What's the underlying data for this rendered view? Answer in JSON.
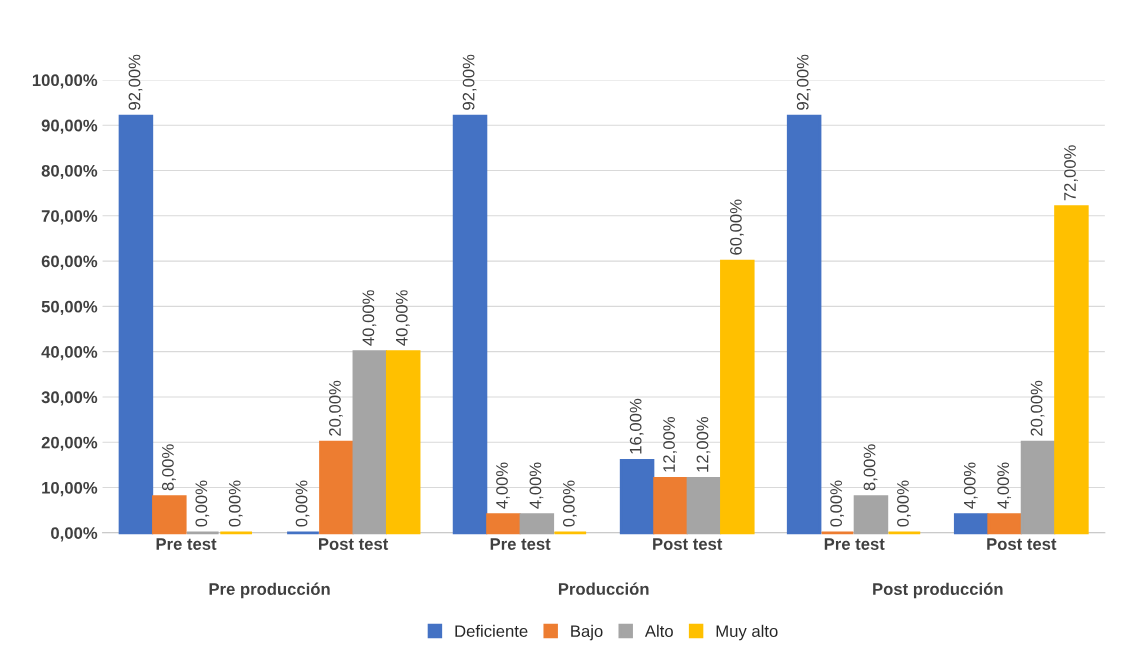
{
  "chart_data": {
    "type": "bar",
    "categories": [
      "Pre test",
      "Post test",
      "Pre test",
      "Post test",
      "Pre test",
      "Post test"
    ],
    "series": [
      {
        "name": "Deficiente",
        "color": "#4472c4",
        "values": [
          92,
          0,
          92,
          16,
          92,
          4
        ],
        "value_labels": [
          "92,00%",
          "0,00%",
          "92,00%",
          "16,00%",
          "92,00%",
          "4,00%"
        ]
      },
      {
        "name": "Bajo",
        "color": "#ed7d31",
        "values": [
          8,
          20,
          4,
          12,
          0,
          4
        ],
        "value_labels": [
          "8,00%",
          "20,00%",
          "4,00%",
          "12,00%",
          "0,00%",
          "4,00%"
        ]
      },
      {
        "name": "Alto",
        "color": "#a5a5a5",
        "values": [
          0,
          40,
          4,
          12,
          8,
          20
        ],
        "value_labels": [
          "0,00%",
          "40,00%",
          "4,00%",
          "12,00%",
          "8,00%",
          "20,00%"
        ]
      },
      {
        "name": "Muy alto",
        "color": "#ffc000",
        "values": [
          0,
          40,
          0,
          60,
          0,
          72
        ],
        "value_labels": [
          "0,00%",
          "40,00%",
          "0,00%",
          "60,00%",
          "0,00%",
          "72,00%"
        ]
      }
    ],
    "ylim": [
      0,
      100
    ],
    "yticks": [
      {
        "value": 0,
        "label": "0,00%"
      },
      {
        "value": 10,
        "label": "10,00%"
      },
      {
        "value": 20,
        "label": "20,00%"
      },
      {
        "value": 30,
        "label": "30,00%"
      },
      {
        "value": 40,
        "label": "40,00%"
      },
      {
        "value": 50,
        "label": "50,00%"
      },
      {
        "value": 60,
        "label": "60,00%"
      },
      {
        "value": 70,
        "label": "70,00%"
      },
      {
        "value": 80,
        "label": "80,00%"
      },
      {
        "value": 90,
        "label": "90,00%"
      },
      {
        "value": 100,
        "label": "100,00%"
      }
    ],
    "annotations": [
      "Pre producción",
      "Producción",
      "Post producción"
    ],
    "grid": "y",
    "legend": "bottom"
  }
}
